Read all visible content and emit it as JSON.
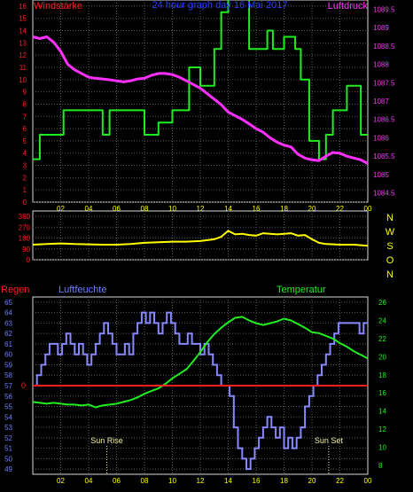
{
  "colors": {
    "background": "#000000",
    "frame": "#d8d8d8",
    "grid": "#5a5a5a",
    "left_axis_red": "#ff2020",
    "right_axis_magenta": "#ff30ff",
    "title_blue": "#2a3cff",
    "time_axis_yellow": "#ffff00",
    "wind_dir_yellow": "#ffff00",
    "compass_yellow": "#ffff00",
    "humidity_blue": "#8888ff",
    "humidity_label": "#6f7fff",
    "temp_green": "#20ee20",
    "temp_axis_green": "#20ee20",
    "rain_red": "#ff2020",
    "sun_label": "#f4f4a0"
  },
  "chart_data": [
    {
      "type": "line",
      "title": "24 hour graph day  16 Mai 2017",
      "left_label": "Windstärke",
      "right_label": "Luftdruck",
      "x_ticks": [
        "02",
        "04",
        "06",
        "08",
        "10",
        "12",
        "14",
        "16",
        "18",
        "20",
        "22",
        "00"
      ],
      "x_range_hours": [
        0,
        24
      ],
      "left_ticks": [
        "0",
        "1",
        "2",
        "3",
        "4",
        "5",
        "6",
        "7",
        "8",
        "9",
        "10",
        "11",
        "12",
        "13",
        "14",
        "15",
        "16"
      ],
      "right_ticks": [
        "1084.5",
        "1085",
        "1085.5",
        "1086",
        "1086.5",
        "1087",
        "1087.5",
        "1088",
        "1088.5",
        "1089",
        "1089.5"
      ],
      "ylim_left": [
        0,
        16.5
      ],
      "ylim_right": [
        1084.25,
        1089.75
      ],
      "series": [
        {
          "axis": "left",
          "color": "#20ee20",
          "step": true,
          "x": [
            0,
            0.5,
            1.8,
            2.2,
            5.0,
            5.5,
            8.0,
            9.0,
            10.0,
            11.2,
            12.0,
            13.0,
            13.5,
            14.0,
            15.0,
            15.5,
            16.8,
            17.2,
            18.0,
            18.8,
            19.2,
            19.8,
            20.5,
            21.0,
            21.5,
            22.5,
            23.5,
            24.0
          ],
          "y": [
            3.5,
            5.5,
            5.5,
            7.5,
            5.5,
            7.5,
            5.5,
            6.5,
            7.5,
            11,
            9.5,
            12.5,
            15.5,
            16.6,
            16.6,
            12.5,
            14,
            12.5,
            13.5,
            12.5,
            10,
            5,
            3.5,
            5.5,
            7.5,
            9.5,
            5.5,
            5.5
          ]
        },
        {
          "axis": "right",
          "color": "#ff30ff",
          "step": false,
          "x": [
            0,
            0.5,
            1.0,
            1.5,
            2.0,
            2.5,
            3.0,
            3.5,
            4.0,
            4.5,
            5.0,
            5.5,
            6.0,
            6.5,
            7.0,
            7.5,
            8.0,
            8.5,
            9.0,
            9.5,
            10.0,
            10.5,
            11.0,
            11.5,
            12.0,
            12.5,
            13.0,
            13.5,
            14.0,
            14.5,
            15.0,
            15.5,
            16.0,
            16.5,
            17.0,
            17.5,
            18.0,
            18.5,
            19.0,
            19.5,
            20.0,
            20.5,
            21.0,
            21.5,
            22.0,
            22.5,
            23.0,
            23.5,
            24.0
          ],
          "y": [
            1088.75,
            1088.7,
            1088.75,
            1088.6,
            1088.35,
            1088.0,
            1087.85,
            1087.75,
            1087.65,
            1087.62,
            1087.6,
            1087.58,
            1087.55,
            1087.52,
            1087.55,
            1087.6,
            1087.62,
            1087.7,
            1087.75,
            1087.75,
            1087.72,
            1087.65,
            1087.55,
            1087.45,
            1087.35,
            1087.2,
            1087.05,
            1086.9,
            1086.7,
            1086.6,
            1086.5,
            1086.38,
            1086.25,
            1086.15,
            1086.0,
            1085.88,
            1085.8,
            1085.75,
            1085.55,
            1085.45,
            1085.4,
            1085.38,
            1085.5,
            1085.6,
            1085.58,
            1085.5,
            1085.45,
            1085.4,
            1085.3
          ]
        }
      ]
    },
    {
      "type": "line",
      "left_ticks": [
        "0",
        "90",
        "180",
        "270",
        "360"
      ],
      "compass": [
        "N",
        "W",
        "S",
        "O",
        "N"
      ],
      "ylim": [
        0,
        360
      ],
      "series": [
        {
          "name": "wind direction",
          "color": "#ffff00",
          "x": [
            0,
            1,
            2,
            3,
            4,
            5,
            6,
            7,
            8,
            9,
            10,
            11,
            12,
            13,
            13.5,
            14,
            14.5,
            15,
            15.5,
            16,
            16.5,
            17,
            17.5,
            18,
            18.5,
            19,
            19.5,
            20,
            20.5,
            21,
            22,
            23,
            24
          ],
          "y": [
            125,
            130,
            135,
            130,
            128,
            125,
            125,
            130,
            140,
            145,
            150,
            150,
            155,
            170,
            190,
            240,
            210,
            215,
            205,
            200,
            220,
            215,
            210,
            215,
            220,
            200,
            205,
            170,
            140,
            130,
            125,
            125,
            115
          ]
        }
      ]
    },
    {
      "type": "line",
      "left_label_rain": "Regen",
      "left_label_humidity": "Luftfeuchte",
      "right_label": "Temperatur",
      "left_ticks": [
        "49",
        "50",
        "51",
        "52",
        "53",
        "54",
        "55",
        "56",
        "57",
        "58",
        "59",
        "60",
        "61",
        "62",
        "63",
        "64",
        "65"
      ],
      "right_ticks": [
        "8",
        "10",
        "12",
        "14",
        "16",
        "18",
        "20",
        "22",
        "24",
        "26"
      ],
      "rain_zero_label": "0",
      "ylim_left": [
        48.5,
        65.5
      ],
      "ylim_right": [
        7,
        26.6
      ],
      "annotations": [
        {
          "label": "Sun Rise",
          "x": 5.3
        },
        {
          "label": "Sun Set",
          "x": 21.2
        }
      ],
      "series": [
        {
          "name": "Luftfeuchte",
          "axis": "left",
          "color": "#8888ff",
          "step": true,
          "x": [
            0,
            0.3,
            0.6,
            0.9,
            1.2,
            1.5,
            1.8,
            2.1,
            2.4,
            2.7,
            3.0,
            3.3,
            3.6,
            3.9,
            4.2,
            4.5,
            4.8,
            5.1,
            5.4,
            5.7,
            6.0,
            6.3,
            6.6,
            6.9,
            7.2,
            7.5,
            7.8,
            8.1,
            8.4,
            8.7,
            9.0,
            9.3,
            9.6,
            9.9,
            10.2,
            10.5,
            10.8,
            11.1,
            11.4,
            11.7,
            12.0,
            12.3,
            12.6,
            12.9,
            13.2,
            13.5,
            13.8,
            14.1,
            14.4,
            14.7,
            15.0,
            15.3,
            15.6,
            15.9,
            16.2,
            16.5,
            16.8,
            17.1,
            17.4,
            17.7,
            18.0,
            18.3,
            18.6,
            18.9,
            19.2,
            19.5,
            19.8,
            20.1,
            20.4,
            20.7,
            21.0,
            21.3,
            21.6,
            21.9,
            22.2,
            22.5,
            22.8,
            23.1,
            23.4,
            23.7,
            24.0
          ],
          "y": [
            57,
            58,
            59,
            60,
            61,
            61,
            60,
            61,
            62,
            61,
            60,
            61,
            60,
            59,
            60,
            61,
            62,
            63,
            62,
            61,
            60,
            60,
            61,
            60,
            62,
            63,
            64,
            63,
            64,
            63,
            62,
            63,
            64,
            63,
            62,
            61,
            61,
            62,
            61,
            61,
            60,
            61,
            60,
            59,
            58,
            57,
            57,
            56,
            53,
            51,
            50,
            49,
            50,
            51,
            52,
            53,
            54,
            53,
            52,
            53,
            51,
            52,
            51,
            52,
            53,
            55,
            56,
            57,
            58,
            59,
            60,
            61,
            62,
            63,
            63,
            63,
            63,
            63,
            62,
            63,
            63
          ],
          "ranges": [
            [
              63,
              62
            ],
            [
              62,
              60
            ]
          ]
        },
        {
          "name": "Temperatur",
          "axis": "right",
          "color": "#20ee20",
          "step": false,
          "x": [
            0,
            0.5,
            1,
            1.5,
            2,
            2.5,
            3,
            3.5,
            4,
            4.5,
            5,
            5.5,
            6,
            6.5,
            7,
            7.5,
            8,
            8.5,
            9,
            9.5,
            10,
            10.5,
            11,
            11.5,
            12,
            12.5,
            13,
            13.5,
            14,
            14.5,
            15,
            15.5,
            16,
            16.5,
            17,
            17.5,
            18,
            18.5,
            19,
            19.5,
            20,
            20.5,
            21,
            21.5,
            22,
            22.5,
            23,
            23.5,
            24
          ],
          "y": [
            15.0,
            14.9,
            14.8,
            14.9,
            14.8,
            14.7,
            14.7,
            14.6,
            14.7,
            14.4,
            14.6,
            14.7,
            14.8,
            15.0,
            15.2,
            15.5,
            15.9,
            16.2,
            16.5,
            17.0,
            17.6,
            18.1,
            18.6,
            19.5,
            20.5,
            21.6,
            22.5,
            23.2,
            23.8,
            24.3,
            24.4,
            24.0,
            23.7,
            23.5,
            23.7,
            23.9,
            24.2,
            24.0,
            23.6,
            23.2,
            22.7,
            22.6,
            22.3,
            22.0,
            21.5,
            21.1,
            20.6,
            20.2,
            19.8
          ]
        },
        {
          "name": "Regen",
          "axis": "rain",
          "color": "#ff2020",
          "x": [
            0,
            24
          ],
          "y": [
            0,
            0
          ]
        }
      ]
    }
  ]
}
